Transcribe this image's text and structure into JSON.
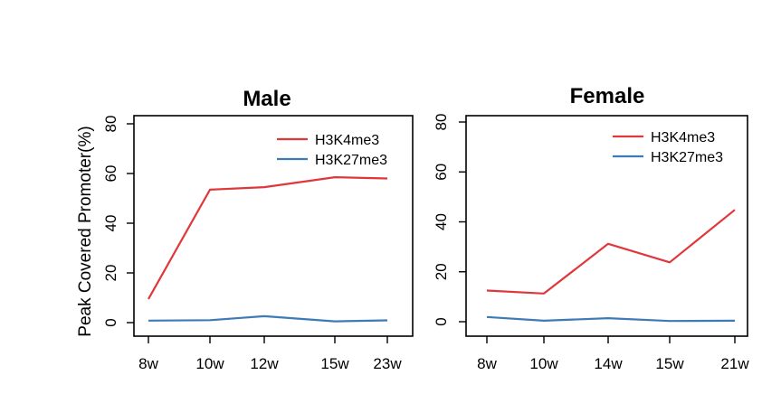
{
  "ylabel": "Peak Covered Promoter(%)",
  "colors": {
    "H3K4me3": "#e0373b",
    "H3K27me3": "#3d7ab8"
  },
  "chart_data": [
    {
      "type": "line",
      "title": "Male",
      "categories": [
        "8w",
        "10w",
        "12w",
        "15w",
        "23w"
      ],
      "series": [
        {
          "name": "H3K4me3",
          "values": [
            9.5,
            53.5,
            54.5,
            58.5,
            58
          ]
        },
        {
          "name": "H3K27me3",
          "values": [
            0.8,
            1.0,
            2.6,
            0.5,
            0.9
          ]
        }
      ],
      "ylabel": "Peak Covered Promoter(%)",
      "yticks": [
        0,
        20,
        40,
        60,
        80
      ],
      "ylim": [
        0,
        80
      ],
      "legend": "top-right",
      "grid": false
    },
    {
      "type": "line",
      "title": "Female",
      "categories": [
        "8w",
        "10w",
        "14w",
        "15w",
        "21w"
      ],
      "series": [
        {
          "name": "H3K4me3",
          "values": [
            12.5,
            11.3,
            31.2,
            23.8,
            44.8
          ]
        },
        {
          "name": "H3K27me3",
          "values": [
            1.9,
            0.4,
            1.4,
            0.3,
            0.4
          ]
        }
      ],
      "ylabel": "",
      "yticks": [
        0,
        20,
        40,
        60,
        80
      ],
      "ylim": [
        0,
        80
      ],
      "legend": "top-right",
      "grid": false
    }
  ]
}
